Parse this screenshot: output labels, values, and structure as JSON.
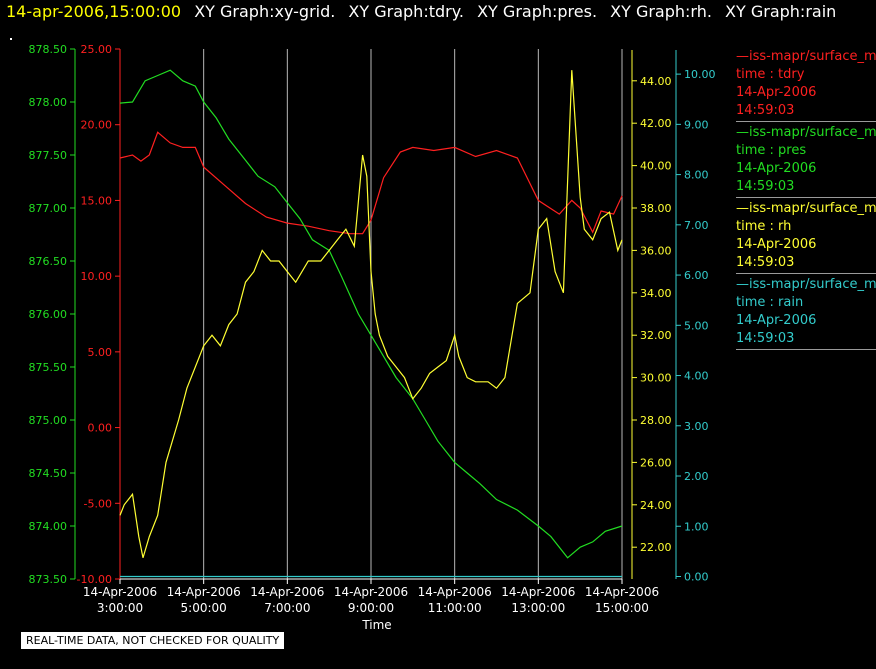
{
  "header": {
    "timestamp": "14-apr-2006,15:00:00",
    "graph_titles": [
      "XY Graph:xy-grid.",
      "XY Graph:tdry.",
      "XY Graph:pres.",
      "XY Graph:rh.",
      "XY Graph:rain"
    ]
  },
  "legend": [
    {
      "source": "—iss-mapr/surface_m",
      "variable": "time : tdry",
      "date": "14-Apr-2006",
      "time": "14:59:03",
      "color": "#ff2020"
    },
    {
      "source": "—iss-mapr/surface_m",
      "variable": "time : pres",
      "date": "14-Apr-2006",
      "time": "14:59:03",
      "color": "#22dd22"
    },
    {
      "source": "—iss-mapr/surface_m",
      "variable": "time : rh",
      "date": "14-Apr-2006",
      "time": "14:59:03",
      "color": "#ffff33"
    },
    {
      "source": "—iss-mapr/surface_m",
      "variable": "time : rain",
      "date": "14-Apr-2006",
      "time": "14:59:03",
      "color": "#33cccc"
    }
  ],
  "footer": {
    "quality_note": "REAL-TIME DATA, NOT CHECKED FOR QUALITY"
  },
  "chart_data": {
    "type": "line",
    "xlabel": "Time",
    "xlim": [
      3.0,
      15.0
    ],
    "grid": "vertical",
    "legend_position": "right",
    "x_ticks": [
      {
        "x": 3,
        "date": "14-Apr-2006",
        "time": "3:00:00"
      },
      {
        "x": 5,
        "date": "14-Apr-2006",
        "time": "5:00:00"
      },
      {
        "x": 7,
        "date": "14-Apr-2006",
        "time": "7:00:00"
      },
      {
        "x": 9,
        "date": "14-Apr-2006",
        "time": "9:00:00"
      },
      {
        "x": 11,
        "date": "14-Apr-2006",
        "time": "11:00:00"
      },
      {
        "x": 13,
        "date": "14-Apr-2006",
        "time": "13:00:00"
      },
      {
        "x": 15,
        "date": "14-Apr-2006",
        "time": "15:00:00"
      }
    ],
    "axes": [
      {
        "id": "pres",
        "color": "#22dd22",
        "ylim": [
          873.5,
          878.5
        ],
        "ticks": [
          "873.50",
          "874.00",
          "874.50",
          "875.00",
          "875.50",
          "876.00",
          "876.50",
          "877.00",
          "877.50",
          "878.00",
          "878.50"
        ]
      },
      {
        "id": "tdry",
        "color": "#ff2020",
        "ylim": [
          -10,
          25
        ],
        "ticks": [
          "-10.00",
          "-5.00",
          "0.00",
          "5.00",
          "10.00",
          "15.00",
          "20.00",
          "25.00"
        ]
      },
      {
        "id": "rh",
        "color": "#ffff33",
        "ylim": [
          20.5,
          45.5
        ],
        "ticks": [
          "22.00",
          "24.00",
          "26.00",
          "28.00",
          "30.00",
          "32.00",
          "34.00",
          "36.00",
          "38.00",
          "40.00",
          "42.00",
          "44.00"
        ]
      },
      {
        "id": "rain",
        "color": "#33cccc",
        "ylim": [
          -0.05,
          10.5
        ],
        "ticks": [
          "0.00",
          "1.00",
          "2.00",
          "3.00",
          "4.00",
          "5.00",
          "6.00",
          "7.00",
          "8.00",
          "9.00",
          "10.00"
        ]
      }
    ],
    "series": [
      {
        "axis": "tdry",
        "color": "#ff2020",
        "x": [
          3.0,
          3.3,
          3.5,
          3.7,
          3.9,
          4.2,
          4.5,
          4.8,
          5.0,
          5.5,
          6.0,
          6.5,
          7.0,
          7.5,
          8.0,
          8.5,
          8.8,
          9.0,
          9.3,
          9.7,
          10.0,
          10.5,
          11.0,
          11.5,
          12.0,
          12.5,
          13.0,
          13.5,
          13.8,
          14.0,
          14.3,
          14.5,
          14.8,
          15.0
        ],
        "y": [
          17.8,
          18.0,
          17.6,
          18.0,
          19.5,
          18.8,
          18.5,
          18.5,
          17.2,
          16.0,
          14.8,
          13.9,
          13.5,
          13.3,
          13.0,
          12.8,
          12.8,
          13.7,
          16.5,
          18.2,
          18.5,
          18.3,
          18.5,
          17.9,
          18.3,
          17.8,
          15.0,
          14.1,
          15.0,
          14.5,
          12.9,
          14.3,
          14.1,
          15.3
        ]
      },
      {
        "axis": "pres",
        "color": "#22dd22",
        "x": [
          3.0,
          3.3,
          3.6,
          3.9,
          4.2,
          4.5,
          4.8,
          5.0,
          5.3,
          5.6,
          6.0,
          6.3,
          6.7,
          7.0,
          7.3,
          7.6,
          8.0,
          8.3,
          8.7,
          9.0,
          9.3,
          9.6,
          10.0,
          10.3,
          10.6,
          11.0,
          11.3,
          11.6,
          12.0,
          12.5,
          13.0,
          13.3,
          13.7,
          14.0,
          14.3,
          14.6,
          15.0
        ],
        "y": [
          877.99,
          878.0,
          878.2,
          878.25,
          878.3,
          878.2,
          878.15,
          878.0,
          877.85,
          877.65,
          877.45,
          877.3,
          877.2,
          877.05,
          876.9,
          876.7,
          876.6,
          876.35,
          876.0,
          875.8,
          875.6,
          875.4,
          875.2,
          875.0,
          874.8,
          874.6,
          874.5,
          874.4,
          874.25,
          874.15,
          874.0,
          873.9,
          873.7,
          873.8,
          873.85,
          873.95,
          874.0
        ]
      },
      {
        "axis": "rh",
        "color": "#ffff33",
        "x": [
          3.0,
          3.1,
          3.3,
          3.45,
          3.55,
          3.7,
          3.9,
          4.1,
          4.4,
          4.6,
          4.8,
          5.0,
          5.2,
          5.4,
          5.6,
          5.8,
          6.0,
          6.2,
          6.4,
          6.6,
          6.8,
          7.0,
          7.2,
          7.5,
          7.8,
          8.0,
          8.2,
          8.4,
          8.6,
          8.8,
          8.9,
          9.0,
          9.1,
          9.2,
          9.4,
          9.6,
          9.8,
          10.0,
          10.2,
          10.4,
          10.6,
          10.8,
          11.0,
          11.1,
          11.3,
          11.5,
          11.8,
          12.0,
          12.2,
          12.5,
          12.8,
          13.0,
          13.2,
          13.4,
          13.6,
          13.8,
          14.0,
          14.1,
          14.3,
          14.5,
          14.7,
          14.9,
          15.0
        ],
        "y": [
          23.5,
          24.0,
          24.5,
          22.5,
          21.5,
          22.5,
          23.5,
          26.0,
          28.0,
          29.5,
          30.5,
          31.5,
          32.0,
          31.5,
          32.5,
          33.0,
          34.5,
          35.0,
          36.0,
          35.5,
          35.5,
          35.0,
          34.5,
          35.5,
          35.5,
          36.0,
          36.5,
          37.0,
          36.2,
          40.5,
          39.5,
          35.0,
          33.0,
          32.0,
          31.0,
          30.5,
          30.0,
          29.0,
          29.5,
          30.2,
          30.5,
          30.8,
          32.0,
          31.0,
          30.0,
          29.8,
          29.8,
          29.5,
          30.0,
          33.5,
          34.0,
          37.0,
          37.5,
          35.0,
          34.0,
          44.5,
          38.5,
          37.0,
          36.5,
          37.5,
          37.8,
          36.0,
          36.5
        ]
      },
      {
        "axis": "rain",
        "color": "#33cccc",
        "x": [
          3.0,
          15.0
        ],
        "y": [
          0.0,
          0.0
        ]
      }
    ]
  }
}
